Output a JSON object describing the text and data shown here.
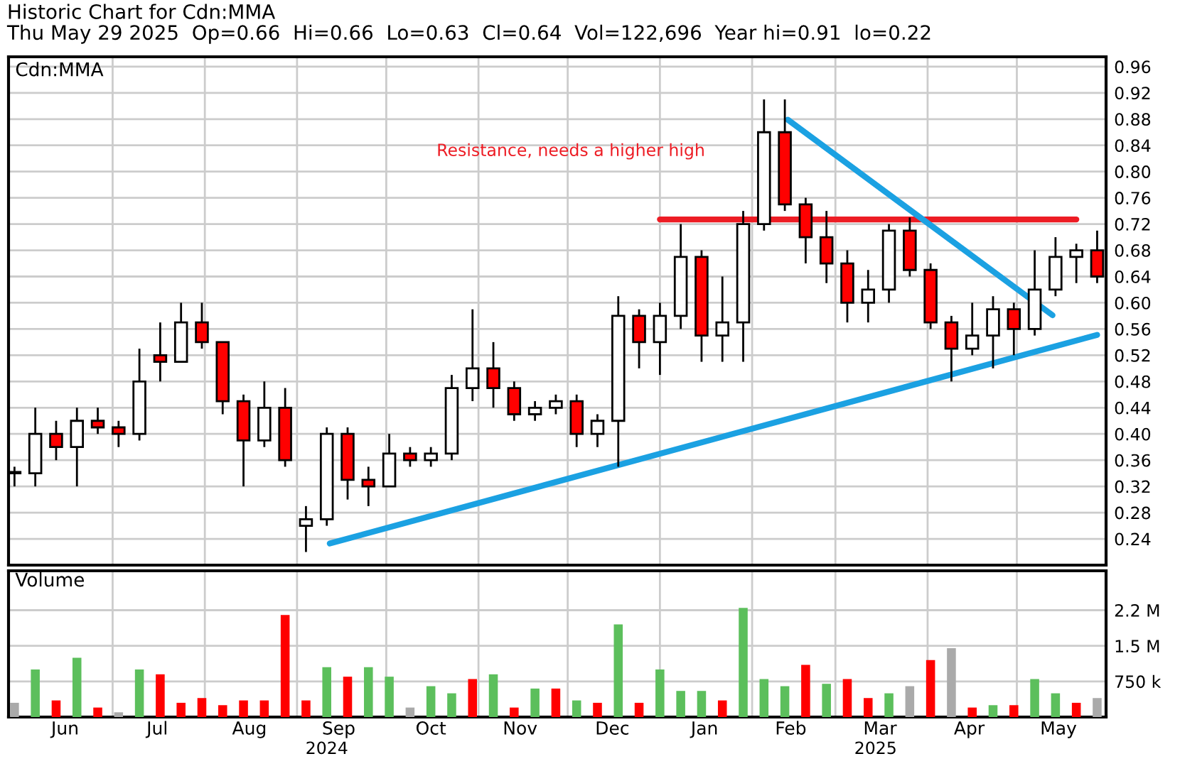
{
  "chart_data": [
    {
      "type": "candlestick",
      "title": "Historic Chart for Cdn:MMA",
      "subtitle": "Thu May 29 2025  Op=0.66  Hi=0.66  Lo=0.63  Cl=0.64  Vol=122,696  Year hi=0.91  lo=0.22",
      "annotations": [
        "Cdn:MMA",
        "Resistance, needs a higher high"
      ],
      "x": [
        "2024-05-29",
        "2024-06-05",
        "2024-06-12",
        "2024-06-19",
        "2024-06-26",
        "2024-07-03",
        "2024-07-10",
        "2024-07-17",
        "2024-07-24",
        "2024-07-31",
        "2024-08-07",
        "2024-08-14",
        "2024-08-21",
        "2024-08-28",
        "2024-09-04",
        "2024-09-11",
        "2024-09-18",
        "2024-09-25",
        "2024-10-02",
        "2024-10-09",
        "2024-10-16",
        "2024-10-23",
        "2024-10-30",
        "2024-11-06",
        "2024-11-13",
        "2024-11-20",
        "2024-11-27",
        "2024-12-04",
        "2024-12-11",
        "2024-12-18",
        "2024-12-25",
        "2025-01-01",
        "2025-01-08",
        "2025-01-15",
        "2025-01-22",
        "2025-01-29",
        "2025-02-05",
        "2025-02-12",
        "2025-02-19",
        "2025-02-26",
        "2025-03-05",
        "2025-03-12",
        "2025-03-19",
        "2025-03-26",
        "2025-04-02",
        "2025-04-09",
        "2025-04-16",
        "2025-04-23",
        "2025-04-30",
        "2025-05-07",
        "2025-05-14",
        "2025-05-21",
        "2025-05-28"
      ],
      "ohlc": [
        [
          0.34,
          0.35,
          0.32,
          0.34
        ],
        [
          0.34,
          0.44,
          0.32,
          0.4
        ],
        [
          0.4,
          0.42,
          0.36,
          0.38
        ],
        [
          0.38,
          0.44,
          0.32,
          0.42
        ],
        [
          0.42,
          0.44,
          0.4,
          0.41
        ],
        [
          0.41,
          0.42,
          0.38,
          0.4
        ],
        [
          0.4,
          0.53,
          0.39,
          0.48
        ],
        [
          0.52,
          0.57,
          0.48,
          0.51
        ],
        [
          0.51,
          0.6,
          0.51,
          0.57
        ],
        [
          0.57,
          0.6,
          0.53,
          0.54
        ],
        [
          0.54,
          0.54,
          0.43,
          0.45
        ],
        [
          0.45,
          0.46,
          0.32,
          0.39
        ],
        [
          0.39,
          0.48,
          0.38,
          0.44
        ],
        [
          0.44,
          0.47,
          0.35,
          0.36
        ],
        [
          0.26,
          0.29,
          0.22,
          0.27
        ],
        [
          0.27,
          0.41,
          0.26,
          0.4
        ],
        [
          0.4,
          0.41,
          0.3,
          0.33
        ],
        [
          0.33,
          0.35,
          0.29,
          0.32
        ],
        [
          0.32,
          0.4,
          0.32,
          0.37
        ],
        [
          0.37,
          0.38,
          0.35,
          0.36
        ],
        [
          0.36,
          0.38,
          0.35,
          0.37
        ],
        [
          0.37,
          0.49,
          0.36,
          0.47
        ],
        [
          0.47,
          0.59,
          0.45,
          0.5
        ],
        [
          0.5,
          0.54,
          0.44,
          0.47
        ],
        [
          0.47,
          0.48,
          0.42,
          0.43
        ],
        [
          0.43,
          0.45,
          0.42,
          0.44
        ],
        [
          0.44,
          0.46,
          0.43,
          0.45
        ],
        [
          0.45,
          0.46,
          0.38,
          0.4
        ],
        [
          0.4,
          0.43,
          0.38,
          0.42
        ],
        [
          0.42,
          0.61,
          0.35,
          0.58
        ],
        [
          0.58,
          0.59,
          0.5,
          0.54
        ],
        [
          0.54,
          0.6,
          0.49,
          0.58
        ],
        [
          0.58,
          0.72,
          0.56,
          0.67
        ],
        [
          0.67,
          0.68,
          0.51,
          0.55
        ],
        [
          0.55,
          0.64,
          0.51,
          0.57
        ],
        [
          0.57,
          0.74,
          0.51,
          0.72
        ],
        [
          0.72,
          0.91,
          0.71,
          0.86
        ],
        [
          0.86,
          0.91,
          0.74,
          0.75
        ],
        [
          0.75,
          0.76,
          0.66,
          0.7
        ],
        [
          0.7,
          0.74,
          0.63,
          0.66
        ],
        [
          0.66,
          0.68,
          0.57,
          0.6
        ],
        [
          0.6,
          0.65,
          0.57,
          0.62
        ],
        [
          0.62,
          0.72,
          0.6,
          0.71
        ],
        [
          0.71,
          0.73,
          0.64,
          0.65
        ],
        [
          0.65,
          0.66,
          0.56,
          0.57
        ],
        [
          0.57,
          0.58,
          0.48,
          0.53
        ],
        [
          0.53,
          0.6,
          0.52,
          0.55
        ],
        [
          0.55,
          0.61,
          0.5,
          0.59
        ],
        [
          0.59,
          0.6,
          0.52,
          0.56
        ],
        [
          0.56,
          0.68,
          0.55,
          0.62
        ],
        [
          0.62,
          0.7,
          0.61,
          0.67
        ],
        [
          0.67,
          0.69,
          0.63,
          0.68
        ],
        [
          0.68,
          0.71,
          0.63,
          0.64
        ]
      ],
      "colors": [
        "#ffffff",
        "#ffffff",
        "#ff0000",
        "#ffffff",
        "#ff0000",
        "#ff0000",
        "#ffffff",
        "#ff0000",
        "#ffffff",
        "#ff0000",
        "#ff0000",
        "#ff0000",
        "#ffffff",
        "#ff0000",
        "#ffffff",
        "#ffffff",
        "#ff0000",
        "#ff0000",
        "#ffffff",
        "#ff0000",
        "#ffffff",
        "#ffffff",
        "#ffffff",
        "#ff0000",
        "#ff0000",
        "#ffffff",
        "#ffffff",
        "#ff0000",
        "#ffffff",
        "#ffffff",
        "#ff0000",
        "#ffffff",
        "#ffffff",
        "#ff0000",
        "#ffffff",
        "#ffffff",
        "#ffffff",
        "#ff0000",
        "#ff0000",
        "#ff0000",
        "#ff0000",
        "#ffffff",
        "#ffffff",
        "#ff0000",
        "#ff0000",
        "#ff0000",
        "#ffffff",
        "#ffffff",
        "#ff0000",
        "#ffffff",
        "#ffffff",
        "#ffffff",
        "#ff0000"
      ],
      "series": [
        {
          "type": "line",
          "x": [
            "2025-01-01",
            "2025-05-21"
          ],
          "values": [
            0.727,
            0.727
          ],
          "color": "#ed1c24"
        },
        {
          "type": "line",
          "x": [
            "2024-09-12",
            "2025-05-28"
          ],
          "values": [
            0.233,
            0.551
          ],
          "color": "#1ba1e2"
        },
        {
          "type": "line",
          "x": [
            "2025-02-13",
            "2025-05-13"
          ],
          "values": [
            0.879,
            0.581
          ],
          "color": "#1ba1e2"
        }
      ],
      "xlim": [
        "2024-05-27",
        "2025-05-31"
      ],
      "xticks": [
        {
          "value": "2024-07-01",
          "label": null
        },
        {
          "value": "2024-08-01",
          "label": null
        },
        {
          "value": "2024-09-01",
          "label": null
        },
        {
          "value": "2024-10-01",
          "label": null
        },
        {
          "value": "2024-11-01",
          "label": null
        },
        {
          "value": "2024-12-01",
          "label": null
        },
        {
          "value": "2025-01-01",
          "label": null
        },
        {
          "value": "2025-02-01",
          "label": null
        },
        {
          "value": "2025-03-01",
          "label": null
        },
        {
          "value": "2025-04-01",
          "label": null
        },
        {
          "value": "2025-05-01",
          "label": null
        }
      ],
      "ylim": [
        0.2,
        0.975
      ],
      "yticks": [
        0.24,
        0.28,
        0.32,
        0.36,
        {
          "value": 0.4,
          "label": "0.40"
        },
        0.44,
        0.48,
        0.52,
        0.56,
        {
          "value": 0.6,
          "label": "0.60"
        },
        0.64,
        0.68,
        0.72,
        0.76,
        {
          "value": 0.8,
          "label": "0.80"
        },
        0.84,
        0.88,
        0.92,
        0.96
      ],
      "grid": true,
      "tick_labels": "y"
    },
    {
      "type": "bar",
      "annotations": [
        "Volume",
        "2024",
        "2025"
      ],
      "x": [
        "2024-05-29",
        "2024-06-05",
        "2024-06-12",
        "2024-06-19",
        "2024-06-26",
        "2024-07-03",
        "2024-07-10",
        "2024-07-17",
        "2024-07-24",
        "2024-07-31",
        "2024-08-07",
        "2024-08-14",
        "2024-08-21",
        "2024-08-28",
        "2024-09-04",
        "2024-09-11",
        "2024-09-18",
        "2024-09-25",
        "2024-10-02",
        "2024-10-09",
        "2024-10-16",
        "2024-10-23",
        "2024-10-30",
        "2024-11-06",
        "2024-11-13",
        "2024-11-20",
        "2024-11-27",
        "2024-12-04",
        "2024-12-11",
        "2024-12-18",
        "2024-12-25",
        "2025-01-01",
        "2025-01-08",
        "2025-01-15",
        "2025-01-22",
        "2025-01-29",
        "2025-02-05",
        "2025-02-12",
        "2025-02-19",
        "2025-02-26",
        "2025-03-05",
        "2025-03-12",
        "2025-03-19",
        "2025-03-26",
        "2025-04-02",
        "2025-04-09",
        "2025-04-16",
        "2025-04-23",
        "2025-04-30",
        "2025-05-07",
        "2025-05-14",
        "2025-05-21",
        "2025-05-28"
      ],
      "values": [
        300000,
        1000000,
        350000,
        1250000,
        200000,
        100000,
        1000000,
        900000,
        300000,
        400000,
        250000,
        350000,
        350000,
        2150000,
        350000,
        1050000,
        850000,
        1050000,
        850000,
        200000,
        650000,
        500000,
        800000,
        900000,
        200000,
        600000,
        600000,
        350000,
        300000,
        1950000,
        300000,
        1000000,
        550000,
        550000,
        350000,
        2300000,
        800000,
        650000,
        1100000,
        700000,
        800000,
        400000,
        500000,
        650000,
        1200000,
        1450000,
        200000,
        250000,
        250000,
        800000,
        500000,
        300000,
        400000
      ],
      "colors": [
        "#aaaaaa",
        "#5cbf5c",
        "#ff0000",
        "#5cbf5c",
        "#ff0000",
        "#aaaaaa",
        "#5cbf5c",
        "#ff0000",
        "#ff0000",
        "#ff0000",
        "#ff0000",
        "#ff0000",
        "#ff0000",
        "#ff0000",
        "#ff0000",
        "#5cbf5c",
        "#ff0000",
        "#5cbf5c",
        "#5cbf5c",
        "#aaaaaa",
        "#5cbf5c",
        "#5cbf5c",
        "#ff0000",
        "#5cbf5c",
        "#ff0000",
        "#5cbf5c",
        "#ff0000",
        "#5cbf5c",
        "#ff0000",
        "#5cbf5c",
        "#ff0000",
        "#5cbf5c",
        "#5cbf5c",
        "#5cbf5c",
        "#ff0000",
        "#5cbf5c",
        "#5cbf5c",
        "#5cbf5c",
        "#ff0000",
        "#5cbf5c",
        "#ff0000",
        "#ff0000",
        "#5cbf5c",
        "#aaaaaa",
        "#ff0000",
        "#aaaaaa",
        "#ff0000",
        "#5cbf5c",
        "#ff0000",
        "#5cbf5c",
        "#5cbf5c",
        "#ff0000",
        "#aaaaaa"
      ],
      "xlim": [
        "2024-05-27",
        "2025-05-31"
      ],
      "xticks": [
        {
          "value": "2024-07-01",
          "label": null
        },
        {
          "value": "2024-08-01",
          "label": null
        },
        {
          "value": "2024-09-01",
          "label": null
        },
        {
          "value": "2024-10-01",
          "label": null
        },
        {
          "value": "2024-11-01",
          "label": null
        },
        {
          "value": "2024-12-01",
          "label": null
        },
        {
          "value": "2025-01-01",
          "label": null
        },
        {
          "value": "2025-02-01",
          "label": null
        },
        {
          "value": "2025-03-01",
          "label": null
        },
        {
          "value": "2025-04-01",
          "label": null
        },
        {
          "value": "2025-05-01",
          "label": null
        },
        {
          "value": "2024-06-15",
          "label": "Jun"
        },
        {
          "value": "2024-07-16",
          "label": "Jul"
        },
        {
          "value": "2024-08-16",
          "label": "Aug"
        },
        {
          "value": "2024-09-15",
          "label": "Sep"
        },
        {
          "value": "2024-10-16",
          "label": "Oct"
        },
        {
          "value": "2024-11-15",
          "label": "Nov"
        },
        {
          "value": "2024-12-16",
          "label": "Dec"
        },
        {
          "value": "2025-01-16",
          "label": "Jan"
        },
        {
          "value": "2025-02-14",
          "label": "Feb"
        },
        {
          "value": "2025-03-16",
          "label": "Mar"
        },
        {
          "value": "2025-04-15",
          "label": "Apr"
        },
        {
          "value": "2025-05-15",
          "label": "May"
        }
      ],
      "ylim": [
        0,
        3080000
      ],
      "yticks": [
        {
          "value": 750000,
          "label": "750 k"
        },
        {
          "value": 1500000,
          "label": "1.5 M"
        },
        {
          "value": 2250000,
          "label": "2.2 M"
        }
      ],
      "grid": true
    }
  ]
}
